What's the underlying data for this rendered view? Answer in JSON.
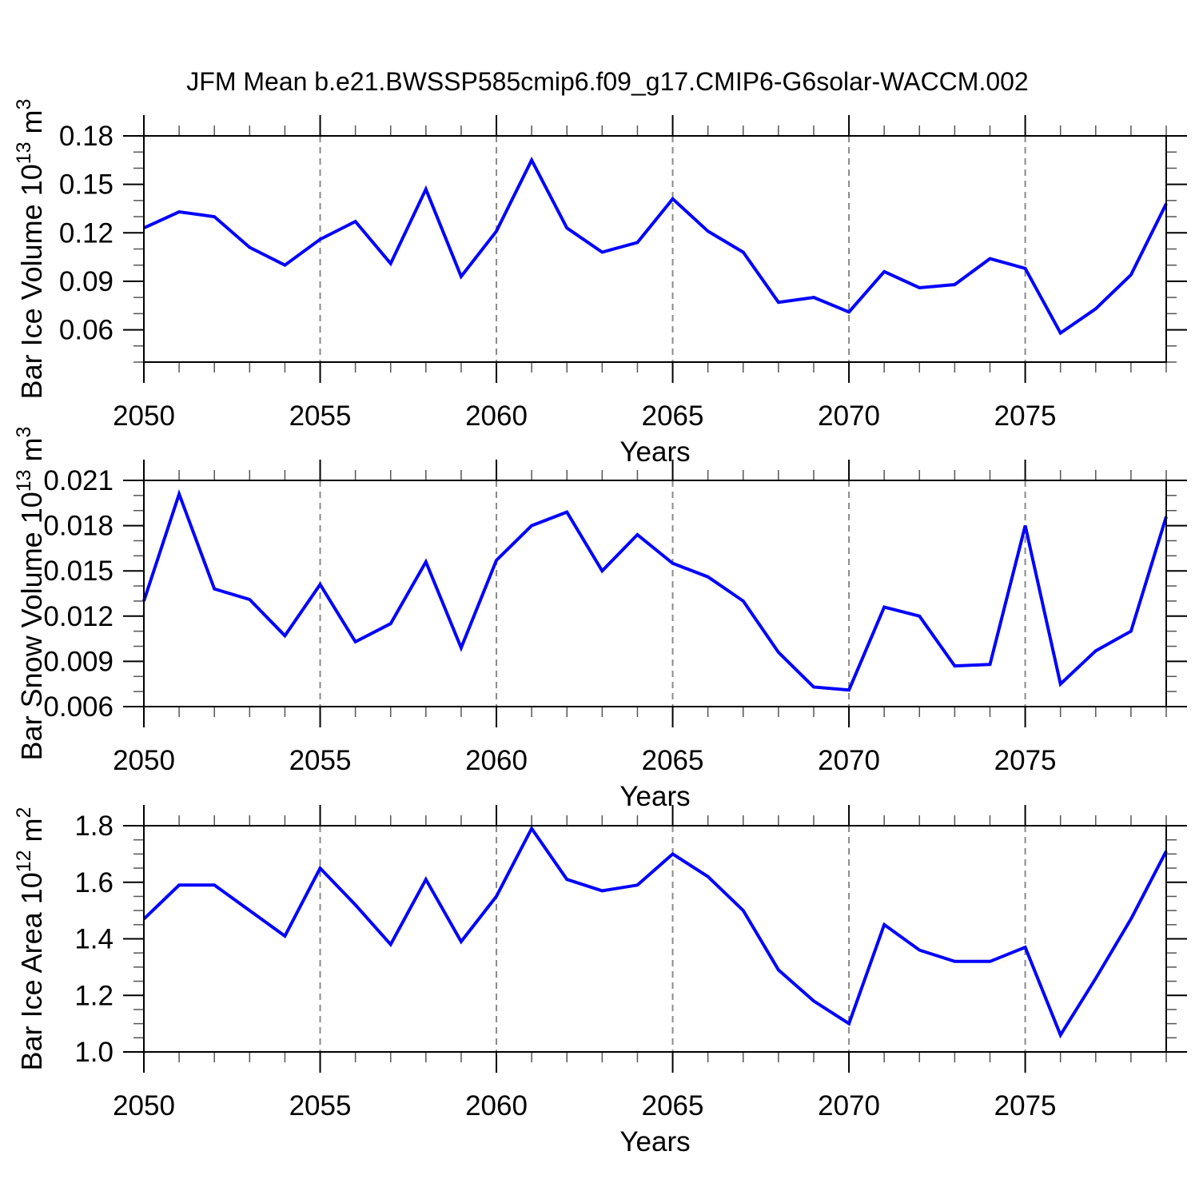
{
  "title": "JFM Mean b.e21.BWSSP585cmip6.f09_g17.CMIP6-G6solar-WACCM.002",
  "colors": {
    "line": "#0000ff",
    "axis": "#000000",
    "grid": "#8a8a8a",
    "minor_tick": "#555555",
    "text": "#000000",
    "background": "#ffffff"
  },
  "x_axis": {
    "label": "Years",
    "min": 2050,
    "max": 2079,
    "major_tick_values": [
      2050,
      2055,
      2060,
      2065,
      2070,
      2075
    ],
    "major_tick_labels": [
      "2050",
      "2055",
      "2060",
      "2065",
      "2070",
      "2075"
    ],
    "minor_step": 1,
    "gridline_values": [
      2055,
      2060,
      2065,
      2070,
      2075
    ]
  },
  "chart_data": [
    {
      "type": "line",
      "name": "bar-ice-volume",
      "ylabel": "Bar Ice Volume 10¹³ m³",
      "ylabel_parts": [
        {
          "t": "Bar Ice Volume 10"
        },
        {
          "t": "13",
          "sup": true
        },
        {
          "t": " m"
        },
        {
          "t": "3",
          "sup": true
        }
      ],
      "xlabel": "Years",
      "ylim": [
        0.04,
        0.18
      ],
      "ytick_values": [
        0.18,
        0.15,
        0.12,
        0.09,
        0.06
      ],
      "ytick_labels": [
        "0.18",
        "0.15",
        "0.12",
        "0.09",
        "0.06"
      ],
      "yminor_step": 0.01,
      "grid": "vertical-dashed",
      "legend": "none",
      "x": [
        2050,
        2051,
        2052,
        2053,
        2054,
        2055,
        2056,
        2057,
        2058,
        2059,
        2060,
        2061,
        2062,
        2063,
        2064,
        2065,
        2066,
        2067,
        2068,
        2069,
        2070,
        2071,
        2072,
        2073,
        2074,
        2075,
        2076,
        2077,
        2078,
        2079
      ],
      "values": [
        0.123,
        0.133,
        0.13,
        0.111,
        0.1,
        0.116,
        0.127,
        0.101,
        0.147,
        0.093,
        0.121,
        0.165,
        0.123,
        0.108,
        0.114,
        0.141,
        0.121,
        0.108,
        0.077,
        0.08,
        0.071,
        0.096,
        0.086,
        0.088,
        0.104,
        0.098,
        0.058,
        0.073,
        0.094,
        0.138
      ]
    },
    {
      "type": "line",
      "name": "bar-snow-volume",
      "ylabel": "Bar Snow Volume 10¹³ m³",
      "ylabel_parts": [
        {
          "t": "Bar Snow Volume 10"
        },
        {
          "t": "13",
          "sup": true
        },
        {
          "t": " m"
        },
        {
          "t": "3",
          "sup": true
        }
      ],
      "xlabel": "Years",
      "ylim": [
        0.006,
        0.021
      ],
      "ytick_values": [
        0.021,
        0.018,
        0.015,
        0.012,
        0.009,
        0.006
      ],
      "ytick_labels": [
        "0.021",
        "0.018",
        "0.015",
        "0.012",
        "0.009",
        "0.006"
      ],
      "yminor_step": 0.001,
      "grid": "vertical-dashed",
      "legend": "none",
      "x": [
        2050,
        2051,
        2052,
        2053,
        2054,
        2055,
        2056,
        2057,
        2058,
        2059,
        2060,
        2061,
        2062,
        2063,
        2064,
        2065,
        2066,
        2067,
        2068,
        2069,
        2070,
        2071,
        2072,
        2073,
        2074,
        2075,
        2076,
        2077,
        2078,
        2079
      ],
      "values": [
        0.013,
        0.0201,
        0.0138,
        0.0131,
        0.0107,
        0.0141,
        0.0103,
        0.0115,
        0.0156,
        0.0099,
        0.0157,
        0.018,
        0.0189,
        0.015,
        0.0174,
        0.0155,
        0.0146,
        0.013,
        0.0096,
        0.0073,
        0.0071,
        0.0126,
        0.012,
        0.0087,
        0.0088,
        0.018,
        0.0075,
        0.0097,
        0.011,
        0.0186
      ]
    },
    {
      "type": "line",
      "name": "bar-ice-area",
      "ylabel": "Bar Ice Area 10¹² m²",
      "ylabel_parts": [
        {
          "t": "Bar Ice Area 10"
        },
        {
          "t": "12",
          "sup": true
        },
        {
          "t": " m"
        },
        {
          "t": "2",
          "sup": true
        }
      ],
      "xlabel": "Years",
      "ylim": [
        1.0,
        1.8
      ],
      "ytick_values": [
        1.8,
        1.6,
        1.4,
        1.2,
        1.0
      ],
      "ytick_labels": [
        "1.8",
        "1.6",
        "1.4",
        "1.2",
        "1.0"
      ],
      "yminor_step": 0.05,
      "grid": "vertical-dashed",
      "legend": "none",
      "x": [
        2050,
        2051,
        2052,
        2053,
        2054,
        2055,
        2056,
        2057,
        2058,
        2059,
        2060,
        2061,
        2062,
        2063,
        2064,
        2065,
        2066,
        2067,
        2068,
        2069,
        2070,
        2071,
        2072,
        2073,
        2074,
        2075,
        2076,
        2077,
        2078,
        2079
      ],
      "values": [
        1.47,
        1.59,
        1.59,
        1.5,
        1.41,
        1.65,
        1.52,
        1.38,
        1.61,
        1.39,
        1.55,
        1.79,
        1.61,
        1.57,
        1.59,
        1.7,
        1.62,
        1.5,
        1.29,
        1.18,
        1.1,
        1.45,
        1.36,
        1.32,
        1.32,
        1.37,
        1.06,
        1.26,
        1.47,
        1.71
      ]
    }
  ]
}
